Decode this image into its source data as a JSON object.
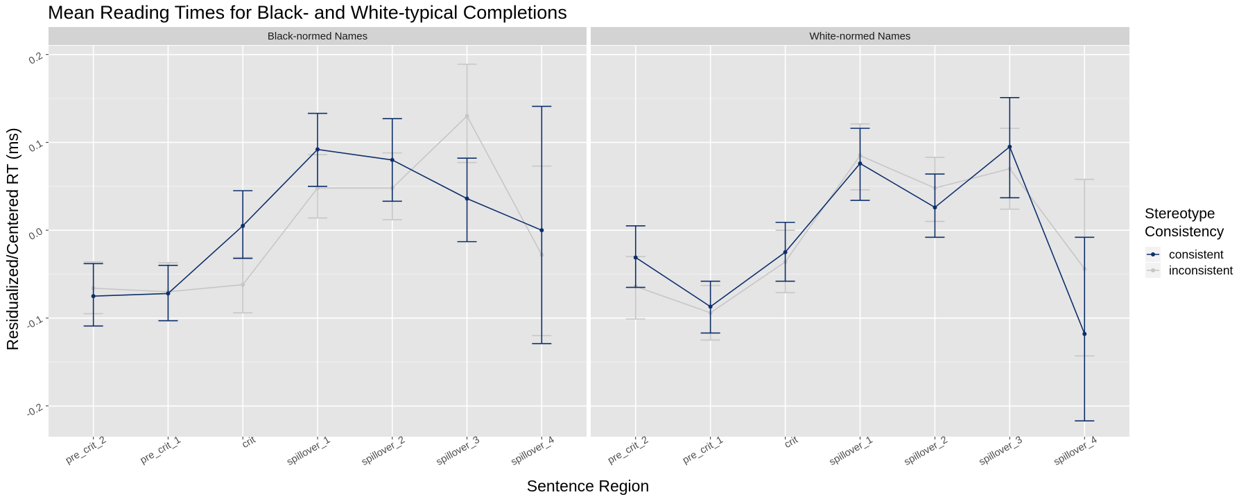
{
  "chart_data": {
    "type": "line",
    "title": "Mean Reading Times for Black- and White-typical Completions",
    "xlabel": "Sentence Region",
    "ylabel": "Residualized/Centered RT (ms)",
    "categories": [
      "pre_crit_2",
      "pre_crit_1",
      "crit",
      "spillover_1",
      "spillover_2",
      "spillover_3",
      "spillover_4"
    ],
    "ylim": [
      -0.235,
      0.21
    ],
    "yticks": [
      -0.2,
      -0.1,
      0.0,
      0.1,
      0.2
    ],
    "ytick_labels": [
      "-0.2",
      "-0.1",
      "0.0",
      "0.1",
      "0.2"
    ],
    "grid": true,
    "legend": {
      "title_lines": [
        "Stereotype",
        "Consistency"
      ],
      "position": "right",
      "entries": [
        {
          "name": "consistent",
          "color": "#0d2f6b"
        },
        {
          "name": "inconsistent",
          "color": "#c6c6c6"
        }
      ]
    },
    "colors": {
      "consistent": "#0d2f6b",
      "inconsistent": "#c6c6c6",
      "panel_background": "#e5e5e5",
      "strip_background": "#d3d3d3",
      "grid": "#ffffff"
    },
    "panels": [
      {
        "label": "Black-normed Names",
        "series": [
          {
            "name": "consistent",
            "values": [
              -0.075,
              -0.072,
              0.005,
              0.092,
              0.08,
              0.036,
              0.0
            ],
            "lower": [
              -0.109,
              -0.103,
              -0.032,
              0.05,
              0.033,
              -0.013,
              -0.129
            ],
            "upper": [
              -0.038,
              -0.04,
              0.045,
              0.133,
              0.127,
              0.082,
              0.141
            ]
          },
          {
            "name": "inconsistent",
            "values": [
              -0.066,
              -0.07,
              -0.062,
              0.048,
              0.048,
              0.13,
              -0.028
            ],
            "lower": [
              -0.095,
              -0.103,
              -0.094,
              0.014,
              0.012,
              0.077,
              -0.12
            ],
            "upper": [
              -0.036,
              -0.037,
              -0.031,
              0.086,
              0.088,
              0.189,
              0.073
            ]
          }
        ]
      },
      {
        "label": "White-normed Names",
        "series": [
          {
            "name": "consistent",
            "values": [
              -0.031,
              -0.087,
              -0.025,
              0.076,
              0.026,
              0.095,
              -0.118
            ],
            "lower": [
              -0.065,
              -0.117,
              -0.058,
              0.034,
              -0.008,
              0.037,
              -0.217
            ],
            "upper": [
              0.005,
              -0.058,
              0.009,
              0.116,
              0.064,
              0.151,
              -0.008
            ]
          },
          {
            "name": "inconsistent",
            "values": [
              -0.064,
              -0.094,
              -0.036,
              0.085,
              0.048,
              0.07,
              -0.044
            ],
            "lower": [
              -0.101,
              -0.125,
              -0.071,
              0.046,
              0.01,
              0.024,
              -0.143
            ],
            "upper": [
              -0.03,
              -0.063,
              0.0,
              0.121,
              0.083,
              0.116,
              0.058
            ]
          }
        ]
      }
    ]
  }
}
